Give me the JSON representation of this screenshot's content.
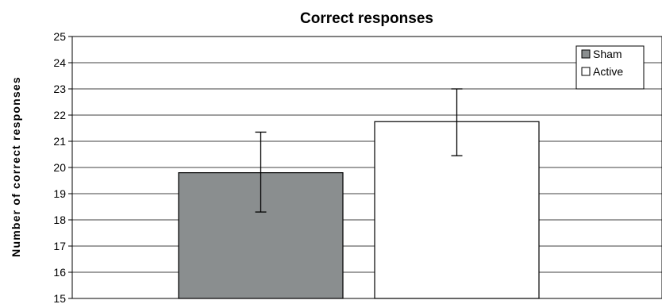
{
  "chart_data": {
    "type": "bar",
    "title": "Correct responses",
    "xlabel": "",
    "ylabel": "Number of correct responses",
    "ylim": [
      15,
      25
    ],
    "yticks": [
      15,
      16,
      17,
      18,
      19,
      20,
      21,
      22,
      23,
      24,
      25
    ],
    "grid": true,
    "legend_position": "top-right",
    "series": [
      {
        "name": "Sham",
        "value": 19.8,
        "error_low": 18.3,
        "error_high": 21.35,
        "color": "#8a8e8f"
      },
      {
        "name": "Active",
        "value": 21.75,
        "error_low": 20.45,
        "error_high": 23.0,
        "color": "#ffffff"
      }
    ]
  }
}
